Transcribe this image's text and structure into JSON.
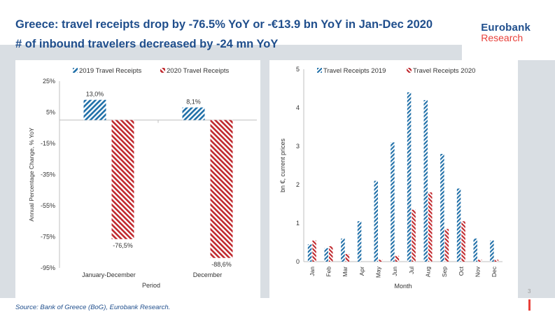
{
  "header": {
    "title_line1": "Greece: travel receipts drop by -76.5% YoY or -€13.9 bn YoY in Jan-Dec 2020",
    "title_line2": "# of inbound travelers decreased by -24 mn YoY",
    "brand_line1": "Eurobank",
    "brand_line2": "Research"
  },
  "footer": {
    "source": "Source: Bank of Greece (BoG), Eurobank Research.",
    "page_number": "3"
  },
  "colors": {
    "series_2019": "#1f6fa8",
    "series_2020": "#c0282d",
    "title": "#1f4e8c",
    "accent": "#e8403a"
  },
  "chart_data": [
    {
      "type": "bar",
      "categories": [
        "January-December",
        "December"
      ],
      "series": [
        {
          "name": "2019 Travel Receipts",
          "values": [
            13.0,
            8.1
          ],
          "labels": [
            "13,0%",
            "8,1%"
          ]
        },
        {
          "name": "2020 Travel Receipts",
          "values": [
            -76.5,
            -88.6
          ],
          "labels": [
            "-76,5%",
            "-88,6%"
          ]
        }
      ],
      "xlabel": "Period",
      "ylabel": "Annual Percentage Change, % YoY",
      "ylim": [
        -95,
        25
      ],
      "yticks": [
        25,
        5,
        -15,
        -35,
        -55,
        -75,
        -95
      ],
      "ytick_labels": [
        "25%",
        "5%",
        "-15%",
        "-35%",
        "-55%",
        "-75%",
        "-95%"
      ],
      "legend": "top"
    },
    {
      "type": "bar",
      "categories": [
        "Jan",
        "Feb",
        "Mar",
        "Apr",
        "May",
        "Jun",
        "Jul",
        "Aug",
        "Sep",
        "Oct",
        "Nov",
        "Dec"
      ],
      "series": [
        {
          "name": "Travel Receipts 2019",
          "values": [
            0.45,
            0.35,
            0.6,
            1.05,
            2.1,
            3.1,
            4.4,
            4.2,
            2.8,
            1.9,
            0.6,
            0.55
          ]
        },
        {
          "name": "Travel Receipts 2020",
          "values": [
            0.55,
            0.4,
            0.2,
            0.0,
            0.05,
            0.15,
            1.35,
            1.8,
            0.85,
            1.05,
            0.05,
            0.05
          ]
        }
      ],
      "xlabel": "Month",
      "ylabel": "bn €, current prices",
      "ylim": [
        0,
        5
      ],
      "yticks": [
        0,
        1,
        2,
        3,
        4,
        5
      ],
      "legend": "top"
    }
  ]
}
